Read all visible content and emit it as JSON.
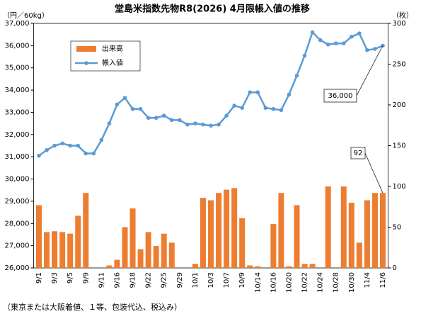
{
  "chart_data": {
    "type": "bar_line",
    "title": "堂島米指数先物R8(2026) 4月限帳入値の推移",
    "y_label": "（円／60kg）",
    "y2_label": "（枚）",
    "footnote": "（東京または大阪着値、１等、包装代込、税込み）",
    "categories": [
      "9/1",
      null,
      "9/3",
      null,
      "9/5",
      null,
      "9/9",
      null,
      "9/11",
      null,
      "9/16",
      null,
      "9/18",
      null,
      "9/22",
      null,
      "9/25",
      null,
      "9/29",
      null,
      "10/1",
      null,
      "10/3",
      null,
      "10/7",
      null,
      "10/9",
      null,
      "10/14",
      null,
      "10/16",
      null,
      "10/20",
      null,
      "10/22",
      null,
      "10/24",
      null,
      "10/28",
      null,
      "10/30",
      null,
      "11/4",
      null,
      "11/6"
    ],
    "series": [
      {
        "name": "出来高",
        "kind": "bar",
        "axis": "y2",
        "color": "#ed7d31",
        "values": [
          77,
          44,
          45,
          44,
          42,
          64,
          92,
          0,
          0,
          3,
          10,
          50,
          73,
          23,
          44,
          27,
          42,
          31,
          0,
          0,
          5,
          86,
          83,
          92,
          96,
          98,
          61,
          3,
          2,
          0,
          54,
          92,
          2,
          77,
          5,
          5,
          0,
          100,
          0,
          100,
          80,
          31,
          83,
          92,
          92
        ]
      },
      {
        "name": "帳入値",
        "kind": "line",
        "axis": "y",
        "color": "#5b9bd5",
        "values": [
          31050,
          31300,
          31500,
          31600,
          31500,
          31500,
          31150,
          31150,
          31750,
          32500,
          33350,
          33650,
          33150,
          33150,
          32750,
          32750,
          32850,
          32650,
          32650,
          32450,
          32500,
          32450,
          32400,
          32450,
          32850,
          33300,
          33200,
          33900,
          33900,
          33200,
          33150,
          33100,
          33800,
          34650,
          35550,
          36600,
          36250,
          36050,
          36100,
          36100,
          36400,
          36550,
          35800,
          35850,
          36000
        ]
      }
    ],
    "ylim": [
      26000,
      37000
    ],
    "yticks": [
      {
        "value": 26000,
        "label": "26,000"
      },
      {
        "value": 27000,
        "label": "27,000"
      },
      {
        "value": 28000,
        "label": "28,000"
      },
      {
        "value": 29000,
        "label": "29,000"
      },
      {
        "value": 30000,
        "label": "30,000"
      },
      {
        "value": 31000,
        "label": "31,000"
      },
      {
        "value": 32000,
        "label": "32,000"
      },
      {
        "value": 33000,
        "label": "33,000"
      },
      {
        "value": 34000,
        "label": "34,000"
      },
      {
        "value": 35000,
        "label": "35,000"
      },
      {
        "value": 36000,
        "label": "36,000"
      },
      {
        "value": 37000,
        "label": "37,000"
      }
    ],
    "y2lim": [
      0,
      300
    ],
    "y2ticks": [
      0,
      50,
      100,
      150,
      200,
      250,
      300
    ],
    "annotations": [
      {
        "text": "36,000",
        "series": 1,
        "index": 44
      },
      {
        "text": "92",
        "series": 0,
        "index": 44
      }
    ],
    "legend": "upper-left"
  }
}
